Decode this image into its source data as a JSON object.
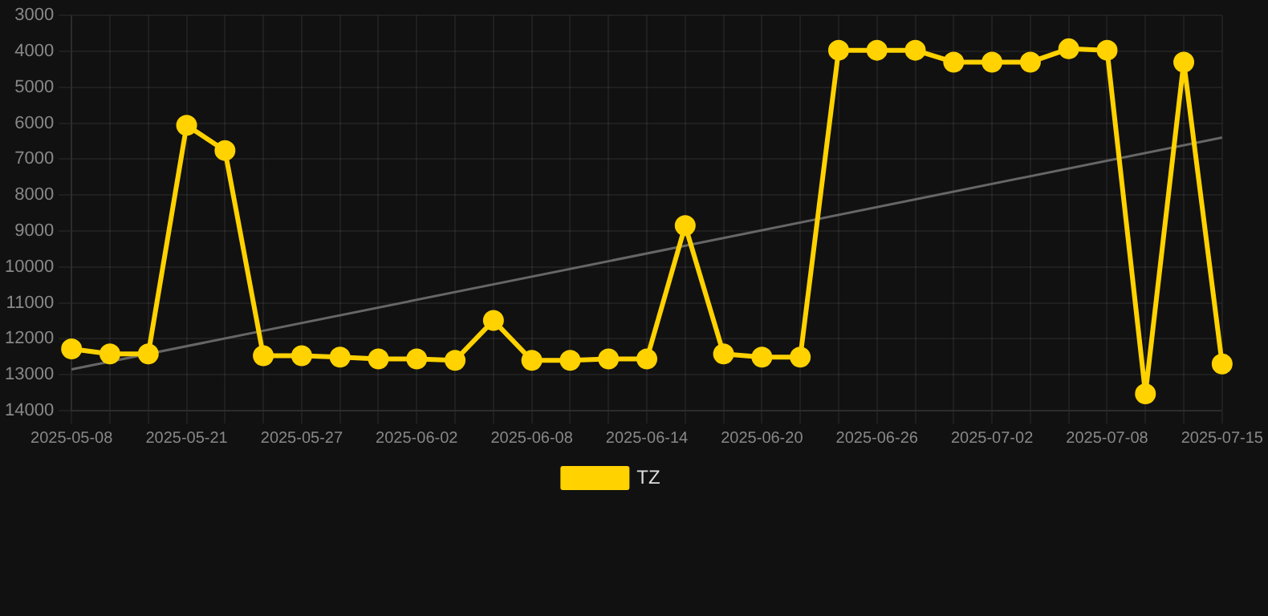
{
  "chart_data": {
    "type": "line",
    "categories": [
      "2025-05-08",
      null,
      null,
      "2025-05-21",
      null,
      null,
      "2025-05-27",
      null,
      null,
      "2025-06-02",
      null,
      null,
      "2025-06-08",
      null,
      null,
      "2025-06-14",
      null,
      null,
      "2025-06-20",
      null,
      null,
      "2025-06-26",
      null,
      null,
      "2025-07-02",
      null,
      null,
      "2025-07-08",
      null,
      null,
      "2025-07-15"
    ],
    "series": [
      {
        "name": "TZ",
        "color": "#ffd200",
        "values": [
          12280,
          12420,
          12420,
          6060,
          6760,
          12470,
          12470,
          12510,
          12560,
          12560,
          12600,
          11490,
          12600,
          12600,
          12560,
          12560,
          8850,
          12420,
          12510,
          12510,
          3970,
          3970,
          3970,
          4300,
          4300,
          4300,
          3930,
          3970,
          13530,
          4300,
          12700
        ]
      },
      {
        "type": "line",
        "marker": "none",
        "color": "#666666",
        "values": [
          12850,
          null,
          null,
          null,
          null,
          null,
          null,
          null,
          null,
          null,
          null,
          null,
          null,
          null,
          null,
          null,
          null,
          null,
          null,
          null,
          null,
          null,
          null,
          null,
          null,
          null,
          null,
          null,
          null,
          null,
          6400
        ]
      }
    ],
    "ylim": [
      14000,
      3000
    ],
    "yticks": [
      3000,
      4000,
      5000,
      6000,
      7000,
      8000,
      9000,
      10000,
      11000,
      12000,
      13000,
      14000
    ],
    "grid": true,
    "legend": "bottom",
    "marker": "circle",
    "line_style": "solid"
  }
}
